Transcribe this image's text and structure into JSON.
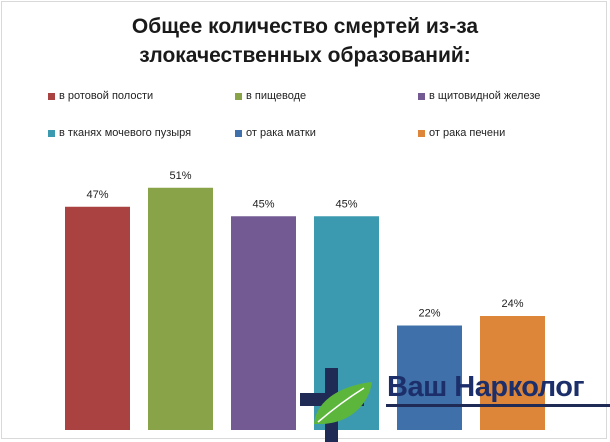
{
  "title_line1": "Общее количество смертей из-за",
  "title_line2": "злокачественных образований:",
  "chart_data": {
    "type": "bar",
    "categories": [
      "в ротовой полости",
      "в пищеводе",
      "в щитовидной железе",
      "в тканях мочевого пузыря",
      "от рака матки",
      "от рака печени"
    ],
    "values": [
      47,
      51,
      45,
      45,
      22,
      24
    ],
    "data_labels": [
      "47%",
      "51%",
      "45%",
      "45%",
      "22%",
      "24%"
    ],
    "colors": [
      "#a94241",
      "#89a348",
      "#735a93",
      "#3c9ab0",
      "#3f70a9",
      "#dd8538"
    ],
    "unit": "%",
    "legend_position": "top",
    "grid": false
  },
  "logo": {
    "text": "Ваш Нарколог",
    "icon": "plus-leaf-icon",
    "text_color": "#1c2f6b",
    "cross_color": "#1f2a55",
    "leaf_color": "#5cb63c"
  }
}
